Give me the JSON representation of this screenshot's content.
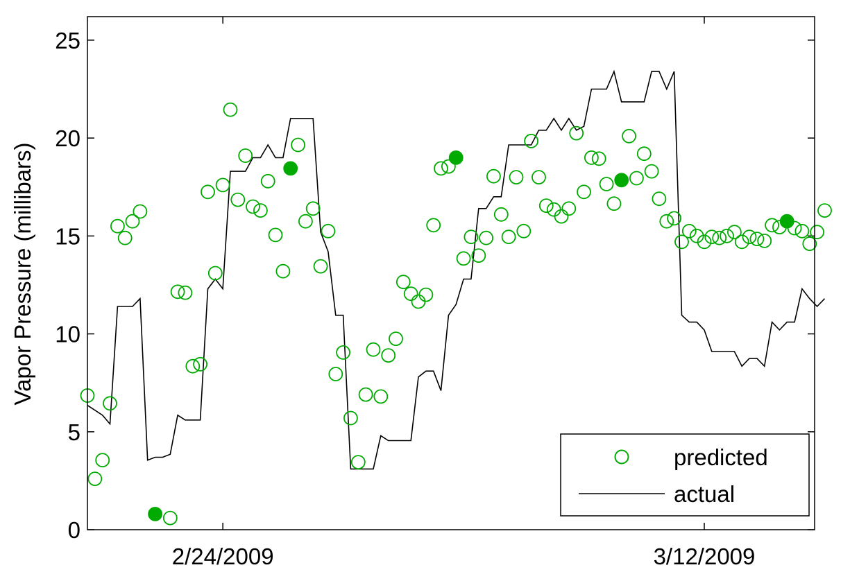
{
  "chart_data": {
    "type": "line",
    "title": "",
    "xlabel": "",
    "ylabel": "Vapor Pressure (millibars)",
    "ylim": [
      0,
      26.2
    ],
    "xlim": [
      "2009-02-19T12:00",
      "2009-03-15T16:00"
    ],
    "x_ticks": [
      {
        "value": "2009-02-24",
        "label": "2/24/2009"
      },
      {
        "value": "2009-03-12",
        "label": "3/12/2009"
      }
    ],
    "y_ticks": [
      {
        "value": 0,
        "label": "0"
      },
      {
        "value": 5,
        "label": "5"
      },
      {
        "value": 10,
        "label": "10"
      },
      {
        "value": 15,
        "label": "15"
      },
      {
        "value": 20,
        "label": "20"
      },
      {
        "value": 25,
        "label": "25"
      }
    ],
    "grid": false,
    "legend_position": "bottom-right",
    "colors": {
      "predicted": "#00aa00",
      "actual": "#000000"
    },
    "series": [
      {
        "name": "predicted",
        "style": "open-circle",
        "points": [
          [
            "2009-02-19T12:00",
            6.85
          ],
          [
            "2009-02-19T18:00",
            2.6
          ],
          [
            "2009-02-20T00:00",
            3.55
          ],
          [
            "2009-02-20T06:00",
            6.45
          ],
          [
            "2009-02-20T12:00",
            15.5
          ],
          [
            "2009-02-20T18:00",
            14.9
          ],
          [
            "2009-02-21T00:00",
            15.75
          ],
          [
            "2009-02-21T06:00",
            16.25
          ],
          [
            "2009-02-21T18:00",
            0.8,
            "filled"
          ],
          [
            "2009-02-22T06:00",
            0.6
          ],
          [
            "2009-02-22T12:00",
            12.15
          ],
          [
            "2009-02-22T18:00",
            12.1
          ],
          [
            "2009-02-23T00:00",
            8.35
          ],
          [
            "2009-02-23T06:00",
            8.45
          ],
          [
            "2009-02-23T12:00",
            17.25
          ],
          [
            "2009-02-23T18:00",
            13.1
          ],
          [
            "2009-02-24T00:00",
            17.6
          ],
          [
            "2009-02-24T06:00",
            21.45
          ],
          [
            "2009-02-24T12:00",
            16.85
          ],
          [
            "2009-02-24T18:00",
            19.1
          ],
          [
            "2009-02-25T00:00",
            16.5
          ],
          [
            "2009-02-25T06:00",
            16.3
          ],
          [
            "2009-02-25T12:00",
            17.8
          ],
          [
            "2009-02-25T18:00",
            15.05
          ],
          [
            "2009-02-26T00:00",
            13.2
          ],
          [
            "2009-02-26T06:00",
            18.45,
            "filled"
          ],
          [
            "2009-02-26T12:00",
            19.65
          ],
          [
            "2009-02-26T18:00",
            15.75
          ],
          [
            "2009-02-27T00:00",
            16.4
          ],
          [
            "2009-02-27T06:00",
            13.45
          ],
          [
            "2009-02-27T12:00",
            15.25
          ],
          [
            "2009-02-27T18:00",
            7.95
          ],
          [
            "2009-02-28T00:00",
            9.05
          ],
          [
            "2009-02-28T06:00",
            5.7
          ],
          [
            "2009-02-28T12:00",
            3.45
          ],
          [
            "2009-02-28T18:00",
            6.9
          ],
          [
            "2009-03-01T00:00",
            9.2
          ],
          [
            "2009-03-01T06:00",
            6.8
          ],
          [
            "2009-03-01T12:00",
            8.9
          ],
          [
            "2009-03-01T18:00",
            9.75
          ],
          [
            "2009-03-02T00:00",
            12.65
          ],
          [
            "2009-03-02T06:00",
            12.05
          ],
          [
            "2009-03-02T12:00",
            11.65
          ],
          [
            "2009-03-02T18:00",
            12
          ],
          [
            "2009-03-03T00:00",
            15.55
          ],
          [
            "2009-03-03T06:00",
            18.45
          ],
          [
            "2009-03-03T12:00",
            18.55
          ],
          [
            "2009-03-03T18:00",
            19,
            "filled"
          ],
          [
            "2009-03-04T00:00",
            13.85
          ],
          [
            "2009-03-04T06:00",
            14.95
          ],
          [
            "2009-03-04T12:00",
            14
          ],
          [
            "2009-03-04T18:00",
            14.9
          ],
          [
            "2009-03-05T00:00",
            18.05
          ],
          [
            "2009-03-05T06:00",
            16.1
          ],
          [
            "2009-03-05T12:00",
            14.95
          ],
          [
            "2009-03-05T18:00",
            18
          ],
          [
            "2009-03-06T00:00",
            15.25
          ],
          [
            "2009-03-06T06:00",
            19.85
          ],
          [
            "2009-03-06T12:00",
            18
          ],
          [
            "2009-03-06T18:00",
            16.55
          ],
          [
            "2009-03-07T00:00",
            16.35
          ],
          [
            "2009-03-07T06:00",
            16
          ],
          [
            "2009-03-07T12:00",
            16.4
          ],
          [
            "2009-03-07T18:00",
            20.25
          ],
          [
            "2009-03-08T00:00",
            17.25
          ],
          [
            "2009-03-08T06:00",
            19
          ],
          [
            "2009-03-08T12:00",
            18.95
          ],
          [
            "2009-03-08T18:00",
            17.65
          ],
          [
            "2009-03-09T00:00",
            16.65
          ],
          [
            "2009-03-09T06:00",
            17.85,
            "filled"
          ],
          [
            "2009-03-09T12:00",
            20.1
          ],
          [
            "2009-03-09T18:00",
            17.95
          ],
          [
            "2009-03-10T00:00",
            19.2
          ],
          [
            "2009-03-10T06:00",
            18.3
          ],
          [
            "2009-03-10T12:00",
            16.9
          ],
          [
            "2009-03-10T18:00",
            15.75
          ],
          [
            "2009-03-11T00:00",
            15.9
          ],
          [
            "2009-03-11T06:00",
            14.7
          ],
          [
            "2009-03-11T12:00",
            15.25
          ],
          [
            "2009-03-11T18:00",
            15
          ],
          [
            "2009-03-12T00:00",
            14.7
          ],
          [
            "2009-03-12T06:00",
            14.95
          ],
          [
            "2009-03-12T12:00",
            14.9
          ],
          [
            "2009-03-12T18:00",
            15
          ],
          [
            "2009-03-13T00:00",
            15.2
          ],
          [
            "2009-03-13T06:00",
            14.7
          ],
          [
            "2009-03-13T12:00",
            14.95
          ],
          [
            "2009-03-13T18:00",
            14.85
          ],
          [
            "2009-03-14T00:00",
            14.75
          ],
          [
            "2009-03-14T06:00",
            15.55
          ],
          [
            "2009-03-14T12:00",
            15.45
          ],
          [
            "2009-03-14T18:00",
            15.75,
            "filled"
          ],
          [
            "2009-03-15T00:00",
            15.4
          ],
          [
            "2009-03-15T06:00",
            15.25
          ],
          [
            "2009-03-15T12:00",
            14.6
          ],
          [
            "2009-03-15T18:00",
            15.2
          ],
          [
            "2009-03-16T00:00",
            16.3
          ]
        ]
      },
      {
        "name": "actual",
        "style": "line",
        "points": [
          [
            "2009-02-19T12:00",
            6.35
          ],
          [
            "2009-02-20T00:00",
            5.85
          ],
          [
            "2009-02-20T06:00",
            5.4
          ],
          [
            "2009-02-20T12:00",
            11.4
          ],
          [
            "2009-02-21T00:00",
            11.4
          ],
          [
            "2009-02-21T06:00",
            11.8
          ],
          [
            "2009-02-21T12:00",
            3.55
          ],
          [
            "2009-02-21T18:00",
            3.7
          ],
          [
            "2009-02-22T00:00",
            3.7
          ],
          [
            "2009-02-22T06:00",
            3.85
          ],
          [
            "2009-02-22T12:00",
            5.85
          ],
          [
            "2009-02-22T18:00",
            5.6
          ],
          [
            "2009-02-23T06:00",
            5.6
          ],
          [
            "2009-02-23T12:00",
            12.3
          ],
          [
            "2009-02-23T18:00",
            12.8
          ],
          [
            "2009-02-24T00:00",
            12.3
          ],
          [
            "2009-02-24T06:00",
            18.3
          ],
          [
            "2009-02-24T18:00",
            18.3
          ],
          [
            "2009-02-25T00:00",
            19
          ],
          [
            "2009-02-25T06:00",
            19
          ],
          [
            "2009-02-25T12:00",
            19.65
          ],
          [
            "2009-02-25T18:00",
            19
          ],
          [
            "2009-02-26T00:00",
            19
          ],
          [
            "2009-02-26T06:00",
            21
          ],
          [
            "2009-02-27T00:00",
            21
          ],
          [
            "2009-02-27T06:00",
            15.2
          ],
          [
            "2009-02-27T12:00",
            14.2
          ],
          [
            "2009-02-27T18:00",
            10.95
          ],
          [
            "2009-02-28T00:00",
            10.95
          ],
          [
            "2009-02-28T06:00",
            3.1
          ],
          [
            "2009-03-01T00:00",
            3.1
          ],
          [
            "2009-03-01T06:00",
            4.8
          ],
          [
            "2009-03-01T12:00",
            4.55
          ],
          [
            "2009-03-01T18:00",
            4.55
          ],
          [
            "2009-03-02T06:00",
            4.55
          ],
          [
            "2009-03-02T12:00",
            7.8
          ],
          [
            "2009-03-02T18:00",
            8.1
          ],
          [
            "2009-03-03T00:00",
            8.1
          ],
          [
            "2009-03-03T06:00",
            7.1
          ],
          [
            "2009-03-03T12:00",
            10.95
          ],
          [
            "2009-03-03T18:00",
            11.5
          ],
          [
            "2009-03-04T00:00",
            12.8
          ],
          [
            "2009-03-04T06:00",
            12.8
          ],
          [
            "2009-03-04T12:00",
            16.4
          ],
          [
            "2009-03-04T18:00",
            16.4
          ],
          [
            "2009-03-05T00:00",
            17
          ],
          [
            "2009-03-05T06:00",
            17
          ],
          [
            "2009-03-05T12:00",
            19.65
          ],
          [
            "2009-03-06T06:00",
            19.65
          ],
          [
            "2009-03-06T12:00",
            20.4
          ],
          [
            "2009-03-06T18:00",
            20.4
          ],
          [
            "2009-03-07T00:00",
            21
          ],
          [
            "2009-03-07T06:00",
            20.4
          ],
          [
            "2009-03-07T12:00",
            21
          ],
          [
            "2009-03-07T18:00",
            20.4
          ],
          [
            "2009-03-08T00:00",
            20.6
          ],
          [
            "2009-03-08T06:00",
            22.5
          ],
          [
            "2009-03-08T18:00",
            22.5
          ],
          [
            "2009-03-09T00:00",
            23.4
          ],
          [
            "2009-03-09T06:00",
            21.85
          ],
          [
            "2009-03-10T00:00",
            21.85
          ],
          [
            "2009-03-10T06:00",
            23.4
          ],
          [
            "2009-03-10T12:00",
            23.4
          ],
          [
            "2009-03-10T18:00",
            22.5
          ],
          [
            "2009-03-11T00:00",
            23.4
          ],
          [
            "2009-03-11T06:00",
            10.95
          ],
          [
            "2009-03-11T12:00",
            10.6
          ],
          [
            "2009-03-11T18:00",
            10.6
          ],
          [
            "2009-03-12T00:00",
            10.2
          ],
          [
            "2009-03-12T06:00",
            9.1
          ],
          [
            "2009-03-13T00:00",
            9.1
          ],
          [
            "2009-03-13T06:00",
            8.35
          ],
          [
            "2009-03-13T12:00",
            8.75
          ],
          [
            "2009-03-13T18:00",
            8.75
          ],
          [
            "2009-03-14T00:00",
            8.35
          ],
          [
            "2009-03-14T06:00",
            10.6
          ],
          [
            "2009-03-14T12:00",
            10.2
          ],
          [
            "2009-03-14T18:00",
            10.6
          ],
          [
            "2009-03-15T00:00",
            10.6
          ],
          [
            "2009-03-15T06:00",
            12.3
          ],
          [
            "2009-03-15T12:00",
            11.8
          ],
          [
            "2009-03-15T18:00",
            11.4
          ],
          [
            "2009-03-16T00:00",
            11.8
          ]
        ]
      }
    ]
  }
}
